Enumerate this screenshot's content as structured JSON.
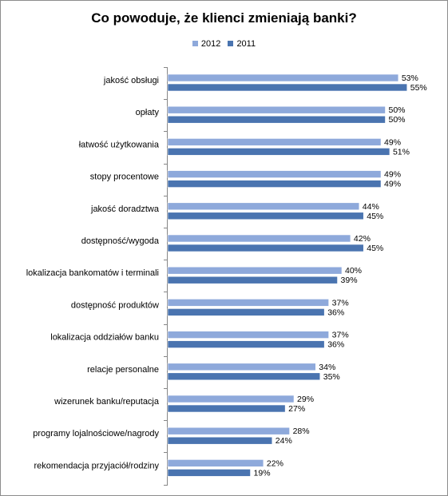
{
  "chart_data": {
    "type": "bar",
    "orientation": "horizontal",
    "title": "Co powoduje, że klienci zmieniają banki?",
    "categories": [
      "jakość obsługi",
      "opłaty",
      "łatwość użytkowania",
      "stopy procentowe",
      "jakość doradztwa",
      "dostępność/wygoda",
      "lokalizacja bankomatów  i terminali",
      "dostępność produktów",
      "lokalizacja oddziałów banku",
      "relacje personalne",
      "wizerunek banku/reputacja",
      "programy lojalnościowe/nagrody",
      "rekomendacja przyjaciół/rodziny"
    ],
    "series": [
      {
        "name": "2012",
        "color": "#8ea9db",
        "values": [
          53,
          50,
          49,
          49,
          44,
          42,
          40,
          37,
          37,
          34,
          29,
          28,
          22
        ]
      },
      {
        "name": "2011",
        "color": "#4a74b0",
        "values": [
          55,
          50,
          51,
          49,
          45,
          45,
          39,
          36,
          36,
          35,
          27,
          24,
          19
        ]
      }
    ],
    "value_suffix": "%",
    "legend": "top",
    "grid": false,
    "xlim": [
      0,
      60
    ]
  }
}
